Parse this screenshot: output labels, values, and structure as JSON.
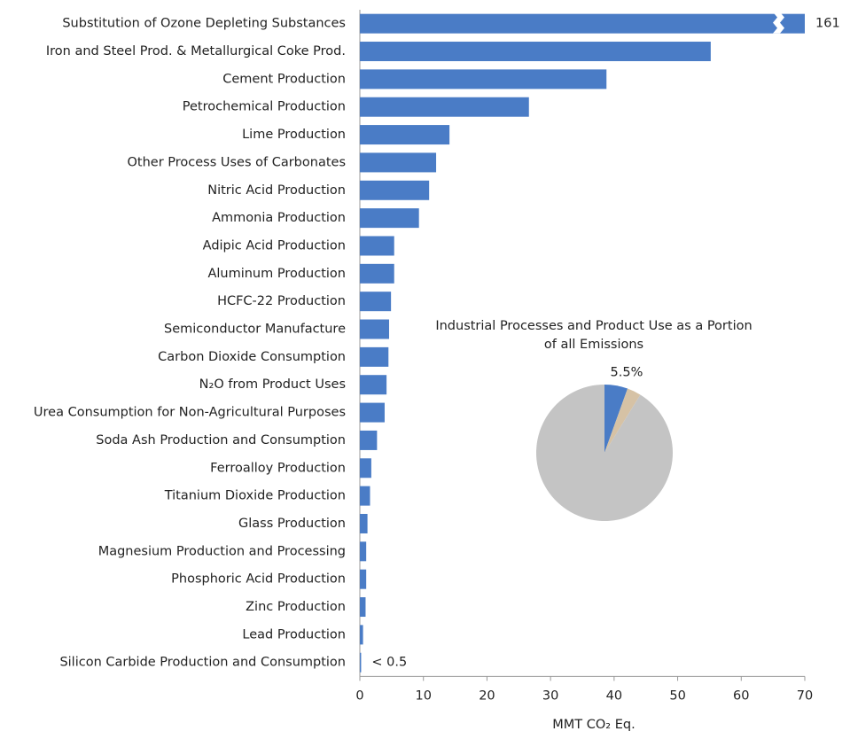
{
  "chart_data": [
    {
      "type": "bar",
      "orientation": "horizontal",
      "x_label": "MMT CO₂ Eq.",
      "categories": [
        "Substitution of Ozone Depleting Substances",
        "Iron and Steel Prod. & Metallurgical Coke Prod.",
        "Cement Production",
        "Petrochemical Production",
        "Lime Production",
        "Other Process Uses of Carbonates",
        "Nitric Acid Production",
        "Ammonia Production",
        "Adipic Acid Production",
        "Aluminum Production",
        "HCFC-22 Production",
        "Semiconductor Manufacture",
        "Carbon Dioxide Consumption",
        "N₂O from Product Uses",
        "Urea Consumption for Non-Agricultural Purposes",
        "Soda Ash Production and Consumption",
        "Ferroalloy Production",
        "Titanium Dioxide Production",
        "Glass Production",
        "Magnesium Production and Processing",
        "Phosphoric Acid Production",
        "Zinc Production",
        "Lead Production",
        "Silicon Carbide Production and Consumption"
      ],
      "values": [
        161,
        55.2,
        38.8,
        26.6,
        14.1,
        12.0,
        10.9,
        9.3,
        5.4,
        5.4,
        4.9,
        4.6,
        4.5,
        4.2,
        3.9,
        2.7,
        1.8,
        1.6,
        1.2,
        1.0,
        1.0,
        0.9,
        0.5,
        0.2
      ],
      "value_labels": [
        "161",
        null,
        null,
        null,
        null,
        null,
        null,
        null,
        null,
        null,
        null,
        null,
        null,
        null,
        null,
        null,
        null,
        null,
        null,
        null,
        null,
        null,
        null,
        "< 0.5"
      ],
      "color": "#4a7cc6",
      "xlim": [
        0,
        70
      ],
      "xticks": [
        0,
        10,
        20,
        30,
        40,
        50,
        60,
        70
      ]
    },
    {
      "type": "pie",
      "title": [
        "Industrial Processes and Product Use as a Portion",
        "of all Emissions"
      ],
      "values": [
        5.5,
        3.3,
        91.2
      ],
      "value_labels": [
        "5.5%",
        null,
        null
      ],
      "colors": [
        "#4a7cc6",
        "#d6c2a5",
        "#c4c4c4"
      ]
    }
  ]
}
